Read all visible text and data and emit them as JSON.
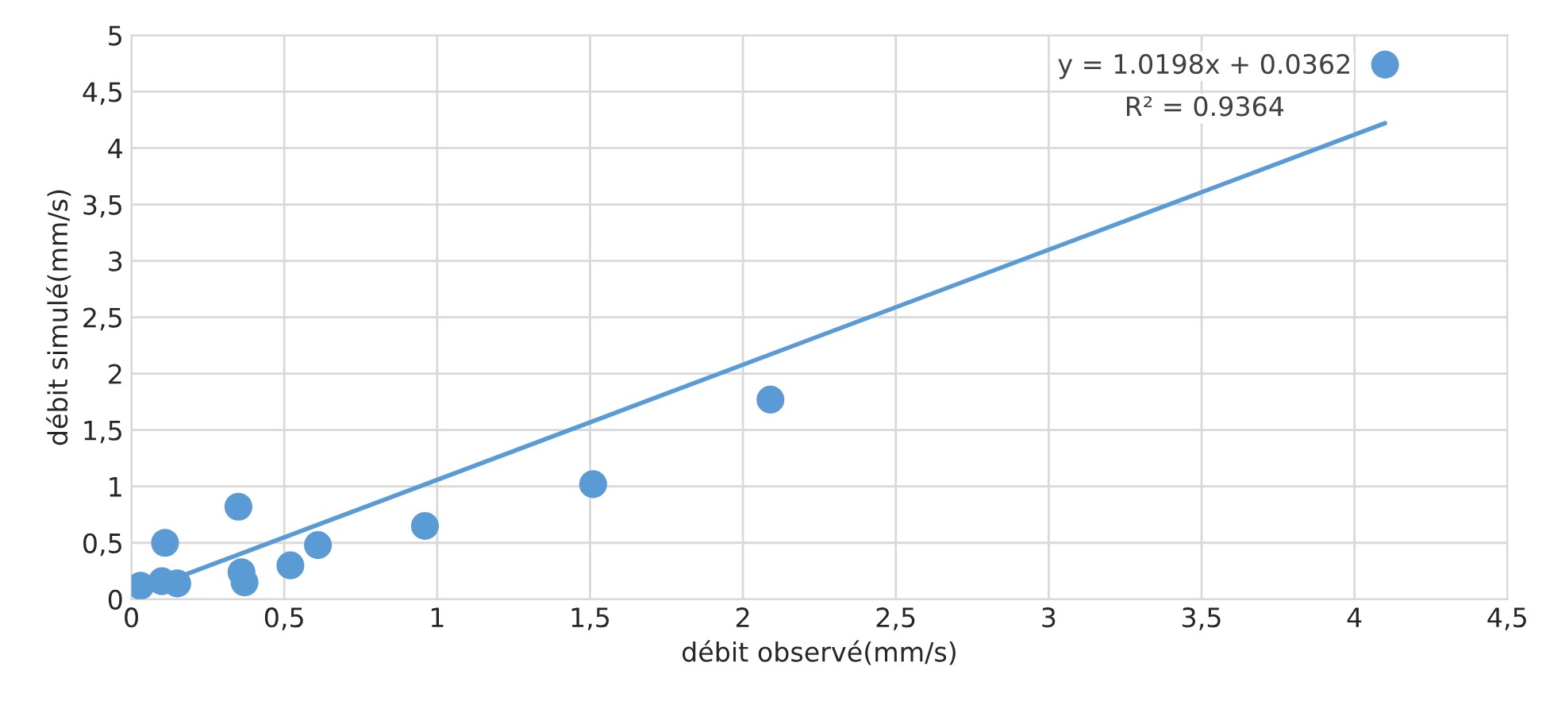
{
  "chart_data": {
    "type": "scatter",
    "xlabel": "débit observé(mm/s)",
    "ylabel": "débit simulé(mm/s)",
    "annotations": [
      "y = 1.0198x + 0.0362",
      "R² = 0.9364"
    ],
    "series": [
      {
        "color": "#5b9bd5",
        "marker": "circle",
        "x": [
          4.1,
          2.09,
          1.51,
          0.96,
          0.61,
          0.52,
          0.35,
          0.36,
          0.37,
          0.11,
          0.15,
          0.03,
          0.1
        ],
        "values": [
          4.74,
          1.77,
          1.02,
          0.65,
          0.48,
          0.3,
          0.82,
          0.24,
          0.15,
          0.5,
          0.14,
          0.12,
          0.16
        ]
      },
      {
        "type": "line",
        "color": "#5b9bd5",
        "line_style": "solid",
        "x": [
          0.02,
          4.1
        ],
        "values": [
          0.06,
          4.22
        ]
      }
    ],
    "xlim": [
      0,
      4.5
    ],
    "ylim": [
      0,
      5
    ],
    "xticks": [
      0,
      {
        "value": 0.5,
        "label": "0,5"
      },
      1,
      {
        "value": 1.5,
        "label": "1,5"
      },
      2,
      {
        "value": 2.5,
        "label": "2,5"
      },
      3,
      {
        "value": 3.5,
        "label": "3,5"
      },
      4,
      {
        "value": 4.5,
        "label": "4,5"
      }
    ],
    "yticks": [
      0,
      {
        "value": 0.5,
        "label": "0,5"
      },
      1,
      {
        "value": 1.5,
        "label": "1,5"
      },
      2,
      {
        "value": 2.5,
        "label": "2,5"
      },
      3,
      {
        "value": 3.5,
        "label": "3,5"
      },
      4,
      {
        "value": 4.5,
        "label": "4,5"
      },
      5
    ],
    "grid": true
  }
}
